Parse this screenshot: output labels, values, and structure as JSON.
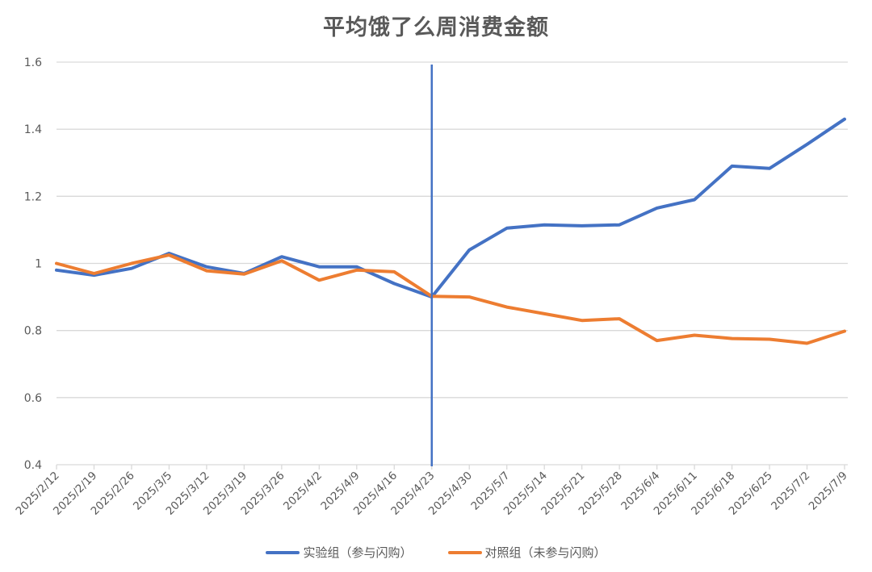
{
  "chart_data": {
    "type": "line",
    "title": "平均饿了么周消费金额",
    "xlabel": "",
    "ylabel": "",
    "ylim": [
      0.4,
      1.6
    ],
    "yticks": [
      0.4,
      0.6,
      0.8,
      1,
      1.2,
      1.4,
      1.6
    ],
    "ytick_labels": [
      "0.4",
      "0.6",
      "0.8",
      "1",
      "1.2",
      "1.4",
      "1.6"
    ],
    "grid": true,
    "legend_position": "bottom",
    "categories": [
      "2025/2/12",
      "2025/2/19",
      "2025/2/26",
      "2025/3/5",
      "2025/3/12",
      "2025/3/19",
      "2025/3/26",
      "2025/4/2",
      "2025/4/9",
      "2025/4/16",
      "2025/4/23",
      "2025/4/30",
      "2025/5/7",
      "2025/5/14",
      "2025/5/21",
      "2025/5/28",
      "2025/6/4",
      "2025/6/11",
      "2025/6/18",
      "2025/6/25",
      "2025/7/2",
      "2025/7/9"
    ],
    "series": [
      {
        "name": "实验组（参与闪购）",
        "color": "#4472C4",
        "values": [
          0.98,
          0.965,
          0.985,
          1.03,
          0.99,
          0.97,
          1.02,
          0.99,
          0.99,
          0.94,
          0.9,
          1.04,
          1.105,
          1.115,
          1.112,
          1.115,
          1.165,
          1.19,
          1.29,
          1.283,
          1.355,
          1.43
        ]
      },
      {
        "name": "对照组（未参与闪购）",
        "color": "#ED7D31",
        "values": [
          1.0,
          0.97,
          1.0,
          1.025,
          0.978,
          0.968,
          1.008,
          0.95,
          0.98,
          0.975,
          0.902,
          0.9,
          0.87,
          0.85,
          0.83,
          0.835,
          0.77,
          0.786,
          0.776,
          0.774,
          0.762,
          0.798
        ]
      }
    ],
    "annotations": [
      {
        "type": "vertical-line",
        "x": "2025/4/23",
        "color": "#4472C4"
      }
    ]
  },
  "legend": {
    "items": [
      {
        "label": "实验组（参与闪购）",
        "color": "#4472C4"
      },
      {
        "label": "对照组（未参与闪购）",
        "color": "#ED7D31"
      }
    ]
  }
}
